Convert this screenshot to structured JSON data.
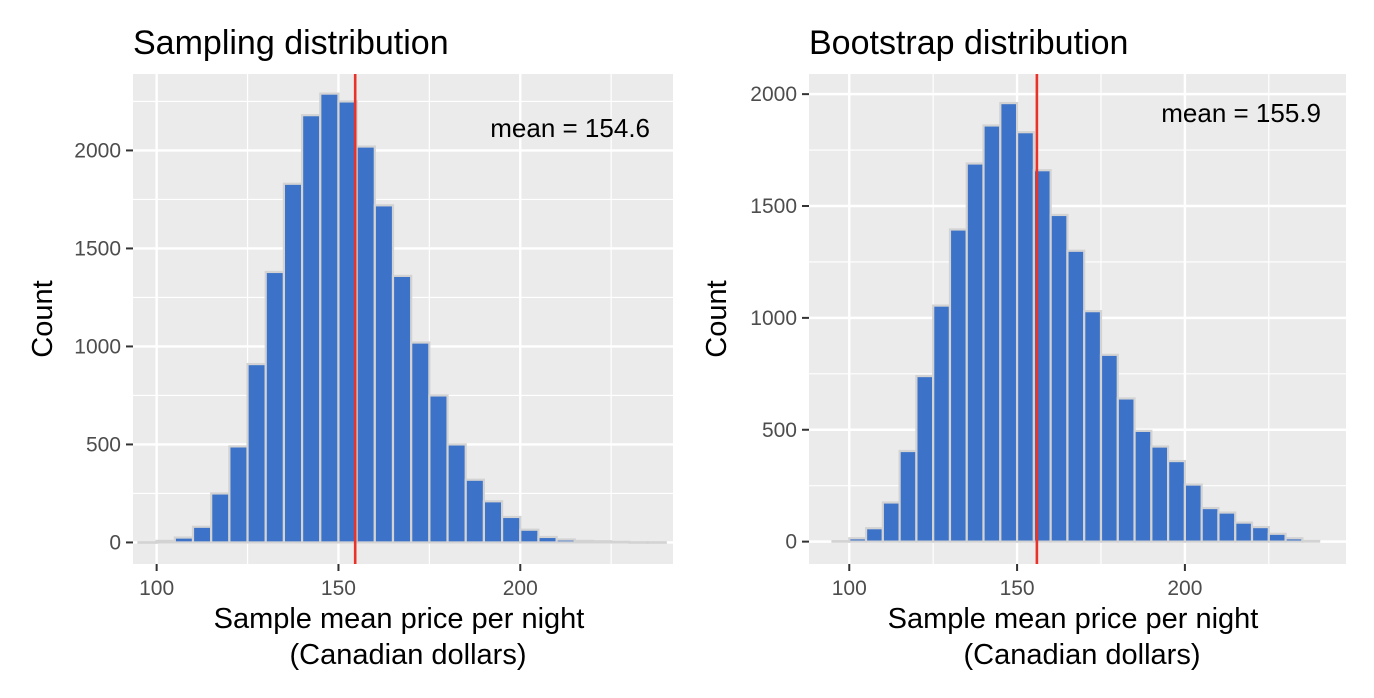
{
  "colors": {
    "panel_bg": "#ebebeb",
    "grid": "#ffffff",
    "bar_fill": "#3c73c8",
    "bar_edge": "#d3d3d3",
    "mean_line": "#e8322a",
    "tick": "#333333"
  },
  "chart_data": [
    {
      "type": "bar",
      "subtype": "histogram",
      "title": "Sampling distribution",
      "xlabel_lines": [
        "Sample mean price per night",
        "(Canadian dollars)"
      ],
      "ylabel": "Count",
      "xlim": [
        93.5,
        242
      ],
      "ylim": [
        -110,
        2390
      ],
      "xticks": [
        100,
        150,
        200
      ],
      "xtick_labels": [
        "100",
        "150",
        "200"
      ],
      "yticks": [
        0,
        500,
        1000,
        1500,
        2000
      ],
      "ytick_labels": [
        "0",
        "500",
        "1000",
        "1500",
        "2000"
      ],
      "grid": true,
      "bin_width": 5,
      "bin_starts": [
        95,
        100,
        105,
        110,
        115,
        120,
        125,
        130,
        135,
        140,
        145,
        150,
        155,
        160,
        165,
        170,
        175,
        180,
        185,
        190,
        195,
        200,
        205,
        210,
        215,
        220,
        225,
        230,
        235
      ],
      "values": [
        1,
        8,
        25,
        80,
        250,
        490,
        910,
        1380,
        1830,
        2180,
        2290,
        2250,
        2020,
        1720,
        1360,
        1020,
        750,
        500,
        320,
        210,
        130,
        65,
        28,
        15,
        8,
        6,
        3,
        1,
        1
      ],
      "mean_value": 154.6,
      "annotation": "mean =  154.6"
    },
    {
      "type": "bar",
      "subtype": "histogram",
      "title": "Bootstrap distribution",
      "xlabel_lines": [
        "Sample mean price per night",
        "(Canadian dollars)"
      ],
      "ylabel": "Count",
      "xlim": [
        88,
        248
      ],
      "ylim": [
        -100,
        2090
      ],
      "xticks": [
        100,
        150,
        200
      ],
      "xtick_labels": [
        "100",
        "150",
        "200"
      ],
      "yticks": [
        0,
        500,
        1000,
        1500,
        2000
      ],
      "ytick_labels": [
        "0",
        "500",
        "1000",
        "1500",
        "2000"
      ],
      "grid": true,
      "bin_width": 5,
      "bin_starts": [
        95,
        100,
        105,
        110,
        115,
        120,
        125,
        130,
        135,
        140,
        145,
        150,
        155,
        160,
        165,
        170,
        175,
        180,
        185,
        190,
        195,
        200,
        205,
        210,
        215,
        220,
        225,
        230,
        235
      ],
      "values": [
        2,
        15,
        60,
        175,
        405,
        740,
        1055,
        1395,
        1690,
        1860,
        1960,
        1830,
        1660,
        1460,
        1300,
        1030,
        835,
        640,
        495,
        425,
        360,
        255,
        150,
        130,
        85,
        65,
        35,
        15,
        3
      ],
      "mean_value": 155.9,
      "annotation": "mean =  155.9"
    }
  ]
}
